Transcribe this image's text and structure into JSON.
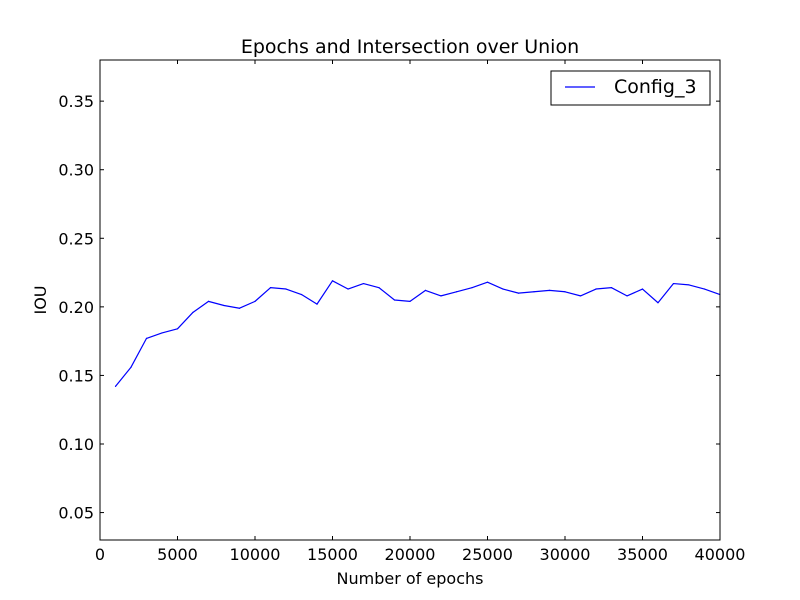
{
  "chart_data": {
    "type": "line",
    "title": "Epochs and Intersection over Union",
    "xlabel": "Number of epochs",
    "ylabel": "IOU",
    "xlim": [
      0,
      40000
    ],
    "ylim": [
      0.03,
      0.38
    ],
    "xticks": [
      0,
      5000,
      10000,
      15000,
      20000,
      25000,
      30000,
      35000,
      40000
    ],
    "yticks": [
      0.05,
      0.1,
      0.15,
      0.2,
      0.25,
      0.3,
      0.35
    ],
    "xtick_labels": [
      "0",
      "5000",
      "10000",
      "15000",
      "20000",
      "25000",
      "30000",
      "35000",
      "40000"
    ],
    "ytick_labels": [
      "0.05",
      "0.10",
      "0.15",
      "0.20",
      "0.25",
      "0.30",
      "0.35"
    ],
    "grid": false,
    "legend_position": "top-right",
    "series": [
      {
        "name": "Config_3",
        "color": "#0000ff",
        "x": [
          1000,
          2000,
          3000,
          4000,
          5000,
          6000,
          7000,
          8000,
          9000,
          10000,
          11000,
          12000,
          13000,
          14000,
          15000,
          16000,
          17000,
          18000,
          19000,
          20000,
          21000,
          22000,
          23000,
          24000,
          25000,
          26000,
          27000,
          28000,
          29000,
          30000,
          31000,
          32000,
          33000,
          34000,
          35000,
          36000,
          37000,
          38000,
          39000,
          40000
        ],
        "y": [
          0.142,
          0.156,
          0.177,
          0.181,
          0.184,
          0.196,
          0.204,
          0.201,
          0.199,
          0.204,
          0.214,
          0.213,
          0.209,
          0.202,
          0.219,
          0.213,
          0.217,
          0.214,
          0.205,
          0.204,
          0.212,
          0.208,
          0.211,
          0.214,
          0.218,
          0.213,
          0.21,
          0.211,
          0.212,
          0.211,
          0.208,
          0.213,
          0.214,
          0.208,
          0.213,
          0.203,
          0.217,
          0.216,
          0.213,
          0.209
        ]
      }
    ]
  }
}
